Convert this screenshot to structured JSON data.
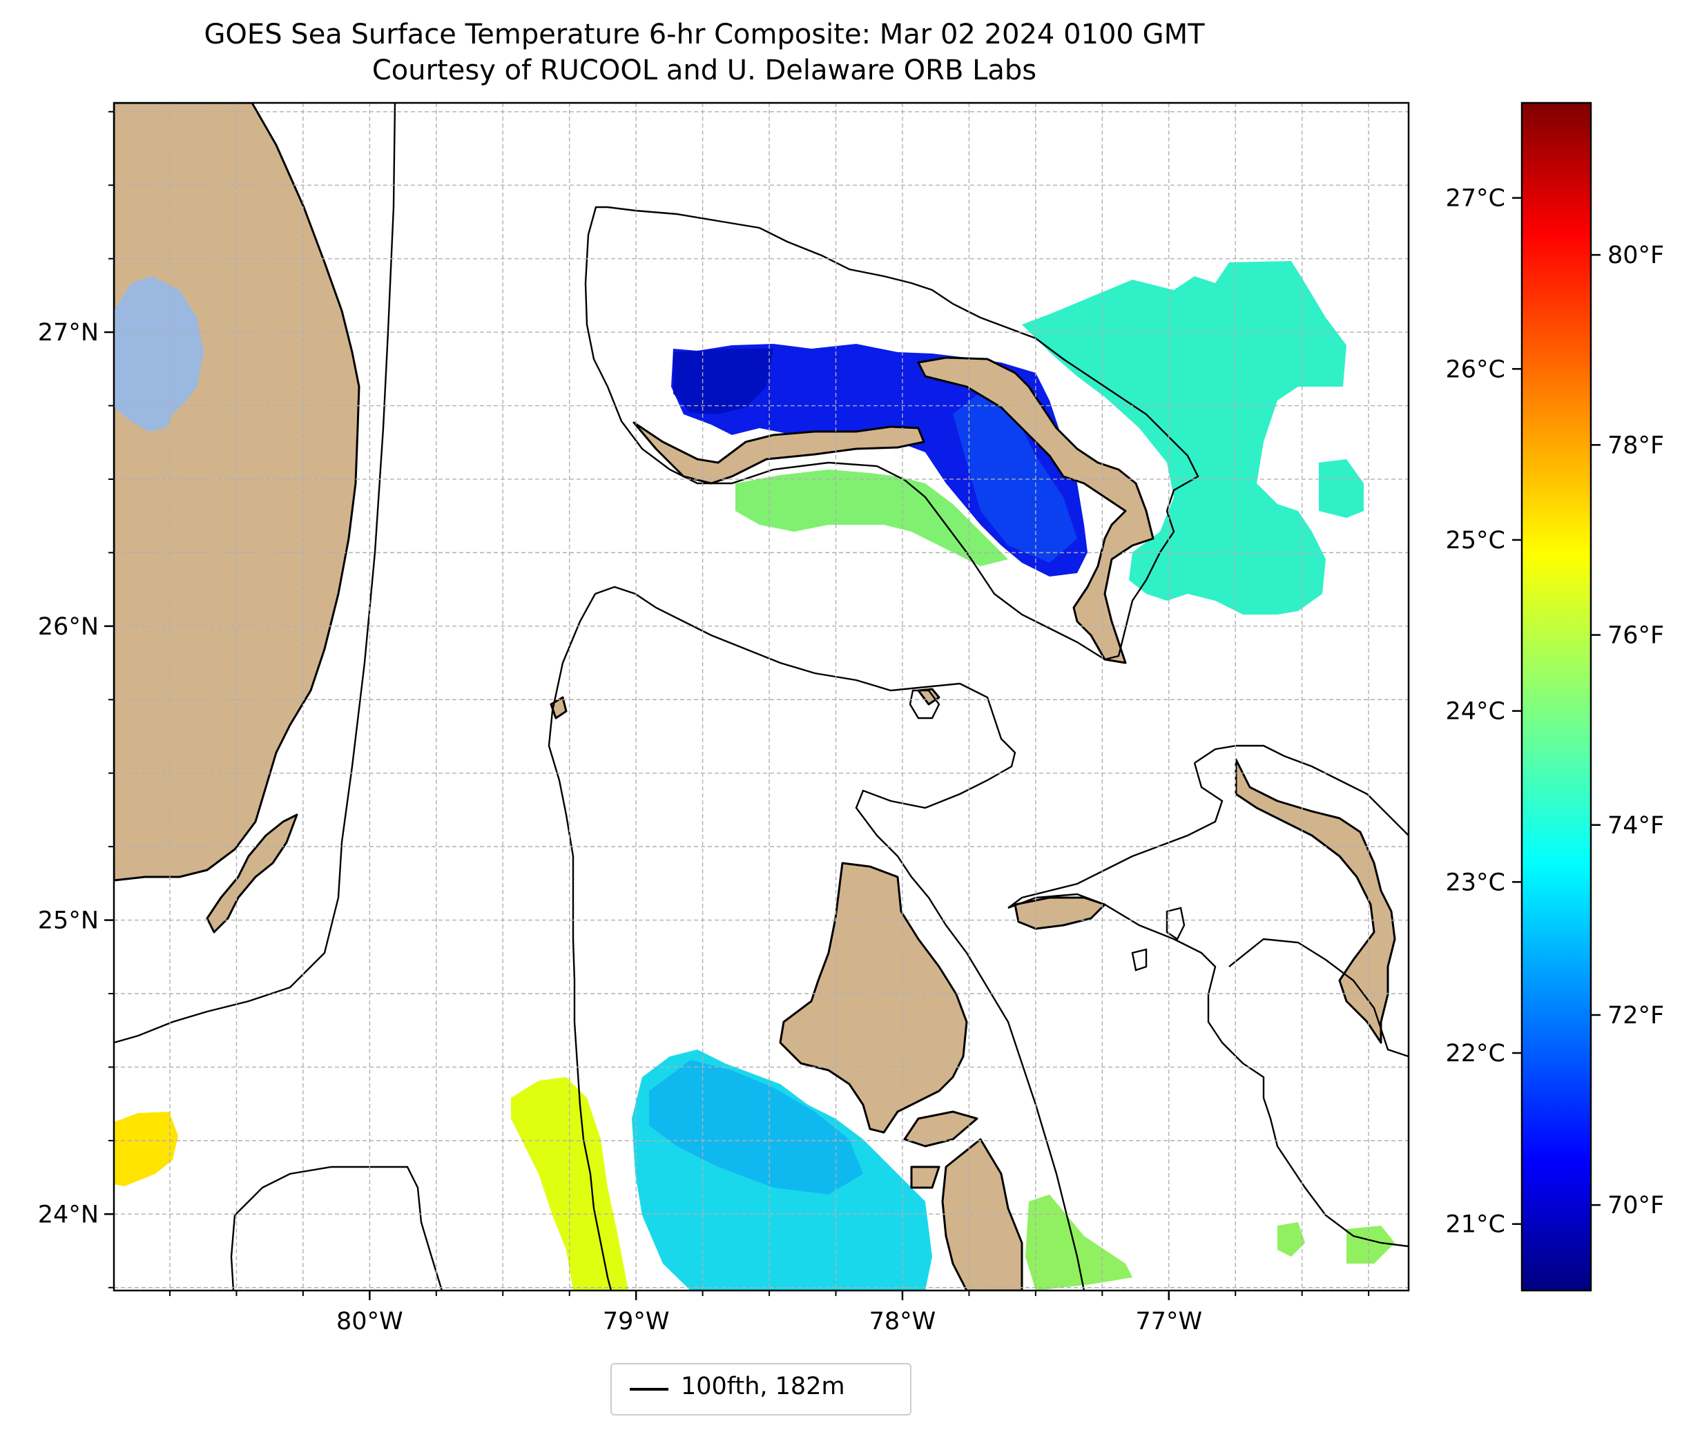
{
  "title": "GOES Sea Surface Temperature 6-hr Composite: Mar 02 2024 0100 GMT",
  "subtitle": "Courtesy of RUCOOL and U. Delaware ORB Labs",
  "map": {
    "lon_range": [
      -80.96,
      -76.1
    ],
    "lat_range": [
      23.74,
      27.78
    ],
    "lon_ticks": [
      {
        "value": -80,
        "label": "80°W"
      },
      {
        "value": -79,
        "label": "79°W"
      },
      {
        "value": -78,
        "label": "78°W"
      },
      {
        "value": -77,
        "label": "77°W"
      }
    ],
    "lat_ticks": [
      {
        "value": 24,
        "label": "24°N"
      },
      {
        "value": 25,
        "label": "25°N"
      },
      {
        "value": 26,
        "label": "26°N"
      },
      {
        "value": 27,
        "label": "27°N"
      }
    ],
    "gridlines": true,
    "colors": {
      "land": "#d2b48c",
      "lake": "#9ab8e0",
      "coast": "#000000"
    }
  },
  "colorbar": {
    "colormap": "jet",
    "celsius_ticks": [
      {
        "value": 21,
        "label": "21°C"
      },
      {
        "value": 22,
        "label": "22°C"
      },
      {
        "value": 23,
        "label": "23°C"
      },
      {
        "value": 24,
        "label": "24°C"
      },
      {
        "value": 25,
        "label": "25°C"
      },
      {
        "value": 26,
        "label": "26°C"
      },
      {
        "value": 27,
        "label": "27°C"
      }
    ],
    "fahrenheit_ticks": [
      {
        "value": 70,
        "label": "70°F"
      },
      {
        "value": 72,
        "label": "72°F"
      },
      {
        "value": 74,
        "label": "74°F"
      },
      {
        "value": 76,
        "label": "76°F"
      },
      {
        "value": 78,
        "label": "78°F"
      },
      {
        "value": 80,
        "label": "80°F"
      }
    ],
    "range_f": [
      69.1,
      81.6
    ]
  },
  "legend": {
    "label": "100fth, 182m"
  }
}
